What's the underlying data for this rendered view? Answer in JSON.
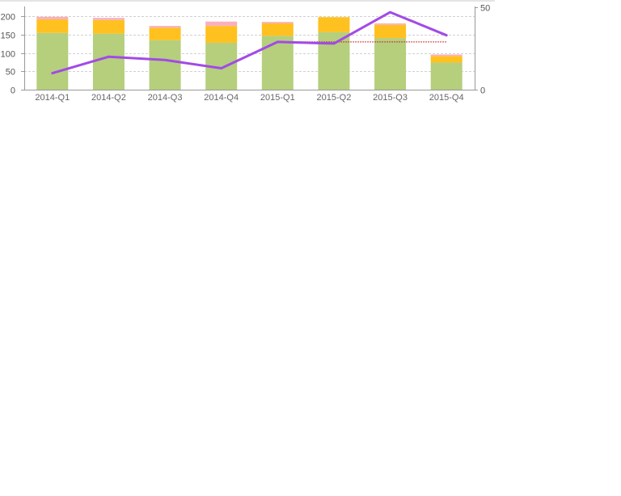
{
  "chart_data": {
    "type": "bar",
    "stacked": true,
    "categories": [
      "2014-Q1",
      "2014-Q2",
      "2014-Q3",
      "2014-Q4",
      "2015-Q1",
      "2015-Q2",
      "2015-Q3",
      "2015-Q4"
    ],
    "series": [
      {
        "color": "#b5cf7d",
        "values": [
          155,
          153,
          135,
          128,
          147,
          157,
          141,
          74
        ]
      },
      {
        "color": "#ffc11f",
        "values": [
          37,
          37,
          34,
          46,
          34,
          41,
          36,
          18
        ]
      },
      {
        "color": "#f9b0bd",
        "values": [
          7,
          6,
          5,
          12,
          4,
          0,
          4,
          4
        ]
      }
    ],
    "line_series": [
      {
        "color": "#a24ae6",
        "axis": "right",
        "values": [
          10,
          20,
          18,
          13,
          29,
          28,
          47,
          33
        ]
      }
    ],
    "reference_line": {
      "color": "#cc2222",
      "style": "dotted",
      "axis": "right",
      "value": 29,
      "from_index": 4,
      "to_index": 7
    },
    "y_left": {
      "ylim": [
        0,
        225
      ],
      "ticks": [
        0,
        50,
        100,
        150,
        200
      ]
    },
    "y_right": {
      "ylim": [
        0,
        50
      ],
      "ticks": [
        0,
        50
      ]
    },
    "grid": true,
    "xlabel": "",
    "ylabel": "",
    "title": ""
  }
}
